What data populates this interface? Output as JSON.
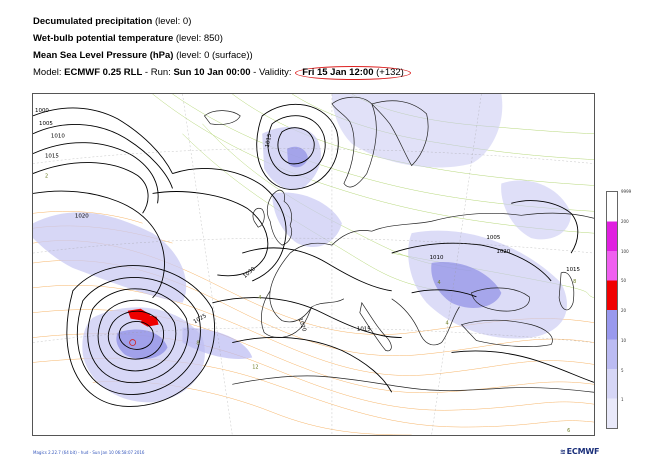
{
  "header": {
    "line1": {
      "name": "Decumulated precipitation",
      "suffix": " (level: 0)"
    },
    "line2": {
      "name": "Wet-bulb potential temperature",
      "suffix": " (level: 850)"
    },
    "line3": {
      "name": "Mean Sea Level Pressure (hPa)",
      "suffix": " (level: 0 (surface))"
    },
    "line4": {
      "model_label": "Model: ",
      "model": "ECMWF 0.25 RLL",
      "run_label": " - Run: ",
      "run": "Sun 10 Jan 00:00",
      "validity_label": " - Validity: ",
      "validity": "Fri 15 Jan 12:00",
      "step": " (+132)"
    }
  },
  "isobar_labels": [
    "1000",
    "1005",
    "1010",
    "1015",
    "1015",
    "1020",
    "1030",
    "1025",
    "1020",
    "1015",
    "1020",
    "1005",
    "1010",
    "1015"
  ],
  "temperature_labels": [
    "2",
    "4",
    "4",
    "8",
    "12",
    "4",
    "6",
    "8"
  ],
  "legend": {
    "ticks": [
      "9999",
      "200",
      "100",
      "50",
      "20",
      "10",
      "5",
      "1"
    ],
    "colors": [
      "#ffffff",
      "#e020e0",
      "#f060f0",
      "#f00000",
      "#9999ee",
      "#bbbbf2",
      "#d6d6f6",
      "#e9e9fa"
    ]
  },
  "footer": "Magics 2.22.7 (64 bit) - hud - Sun Jan 10 06:58:07 2016",
  "logo": "ECMWF",
  "colors": {
    "isobar": "#000000",
    "precip_light": "#c9c9f3",
    "precip_mid": "#8f8fe6",
    "precip_heavy": "#ee0000",
    "warm_theta": "#f4a040",
    "cool_theta": "#a8d060",
    "coast": "#222222",
    "validity_highlight": "#dd2222"
  }
}
